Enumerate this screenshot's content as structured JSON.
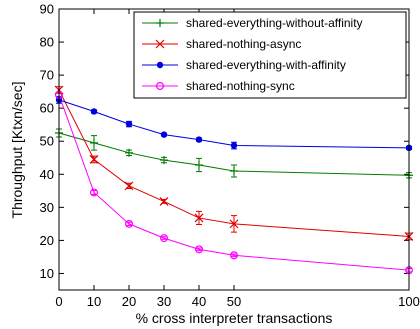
{
  "chart_data": {
    "type": "line",
    "title": "",
    "xlabel": "% cross interpreter transactions",
    "ylabel": "Throughput [Ktxn/sec]",
    "xlim": [
      0,
      100
    ],
    "ylim": [
      5,
      90
    ],
    "xticks": [
      0,
      10,
      20,
      30,
      40,
      50,
      100
    ],
    "yticks": [
      10,
      20,
      30,
      40,
      50,
      60,
      70,
      80,
      90
    ],
    "grid": false,
    "legend_position": "top-right",
    "x": [
      0,
      10,
      20,
      30,
      40,
      50,
      100
    ],
    "series": [
      {
        "name": "shared-everything-without-affinity",
        "color": "#007a00",
        "marker": "plus",
        "values": [
          52.5,
          49.5,
          46.5,
          44.3,
          42.8,
          41.0,
          39.7
        ],
        "errors": [
          1.2,
          2.2,
          0.8,
          0.8,
          2.0,
          1.8,
          0.8
        ]
      },
      {
        "name": "shared-nothing-async",
        "color": "#e00000",
        "marker": "x",
        "values": [
          65.5,
          44.5,
          36.5,
          31.8,
          26.8,
          25.0,
          21.2
        ],
        "errors": [
          1.0,
          1.0,
          0.8,
          0.6,
          2.0,
          2.5,
          1.0
        ]
      },
      {
        "name": "shared-everything-with-affinity",
        "color": "#0000e0",
        "marker": "filled-circle",
        "values": [
          62.5,
          59.0,
          55.2,
          52.0,
          50.5,
          48.7,
          48.0
        ],
        "errors": [
          1.0,
          0.5,
          0.8,
          0.4,
          0.5,
          1.0,
          0.5
        ]
      },
      {
        "name": "shared-nothing-sync",
        "color": "#ff00ff",
        "marker": "open-circle",
        "values": [
          64.0,
          34.5,
          25.0,
          20.7,
          17.3,
          15.5,
          11.0
        ],
        "errors": [
          0.8,
          0.6,
          0.5,
          0.4,
          0.4,
          0.4,
          0.5
        ]
      }
    ]
  }
}
